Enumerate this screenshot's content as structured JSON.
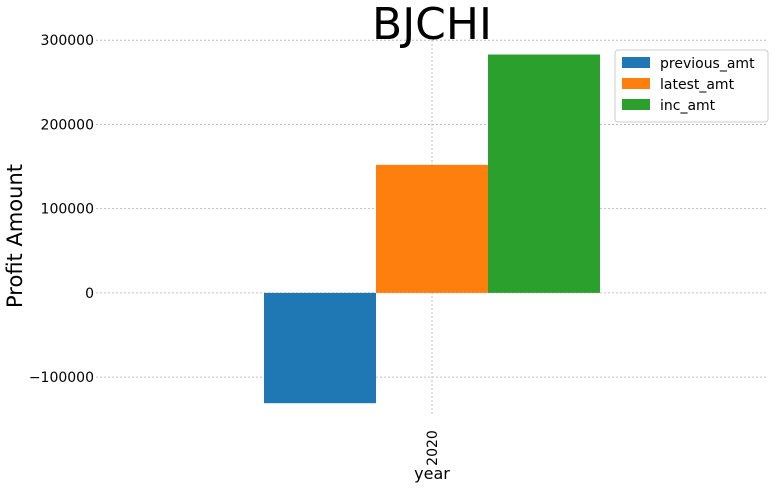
{
  "chart_data": {
    "type": "bar",
    "title": "BJCHI",
    "xlabel": "year",
    "ylabel": "Profit Amount",
    "categories": [
      "2020"
    ],
    "series": [
      {
        "name": "previous_amt",
        "color": "#1f77b4",
        "values": [
          -131000
        ]
      },
      {
        "name": "latest_amt",
        "color": "#ff7f0e",
        "values": [
          152000
        ]
      },
      {
        "name": "inc_amt",
        "color": "#2ca02c",
        "values": [
          283000
        ]
      }
    ],
    "ylim": [
      -145000,
      305000
    ],
    "yticks": [
      -100000,
      0,
      100000,
      200000,
      300000
    ],
    "ytick_labels": [
      "−100000",
      "0",
      "100000",
      "200000",
      "300000"
    ],
    "grid": true,
    "legend_position": "top-right"
  }
}
